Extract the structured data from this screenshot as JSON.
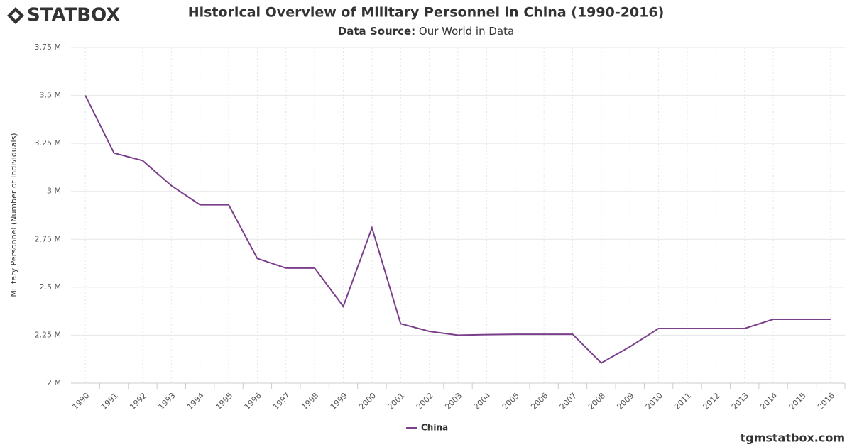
{
  "logo": "STATBOX",
  "footer": "tgmstatbox.com",
  "chart_data": {
    "type": "line",
    "title": "Historical Overview of Military Personnel in China (1990-2016)",
    "subtitle": {
      "label": "Data Source:",
      "text": "Our World in Data"
    },
    "y_label": "Military Personnel (Number of Individuals)",
    "categories": [
      "1990",
      "1991",
      "1992",
      "1993",
      "1994",
      "1995",
      "1996",
      "1997",
      "1998",
      "1999",
      "2000",
      "2001",
      "2002",
      "2003",
      "2004",
      "2005",
      "2006",
      "2007",
      "2008",
      "2009",
      "2010",
      "2011",
      "2012",
      "2013",
      "2014",
      "2015",
      "2016"
    ],
    "series": [
      {
        "name": "China",
        "color": "#7b3f8c",
        "values": [
          3500000,
          3200000,
          3160000,
          3030000,
          2930000,
          2930000,
          2650000,
          2600000,
          2600000,
          2400000,
          2810000,
          2310000,
          2270000,
          2250000,
          2253000,
          2255000,
          2255000,
          2255000,
          2105000,
          2190000,
          2285000,
          2285000,
          2285000,
          2285000,
          2333000,
          2333000,
          2333000
        ]
      }
    ],
    "ylim": [
      2000000,
      3750000
    ],
    "yticks": [
      {
        "value": 2000000,
        "label": "2 M"
      },
      {
        "value": 2250000,
        "label": "2.25 M"
      },
      {
        "value": 2500000,
        "label": "2.5 M"
      },
      {
        "value": 2750000,
        "label": "2.75 M"
      },
      {
        "value": 3000000,
        "label": "3 M"
      },
      {
        "value": 3250000,
        "label": "3.25 M"
      },
      {
        "value": 3500000,
        "label": "3.5 M"
      },
      {
        "value": 3750000,
        "label": "3.75 M"
      }
    ],
    "grid": true,
    "legend": "bottom"
  }
}
